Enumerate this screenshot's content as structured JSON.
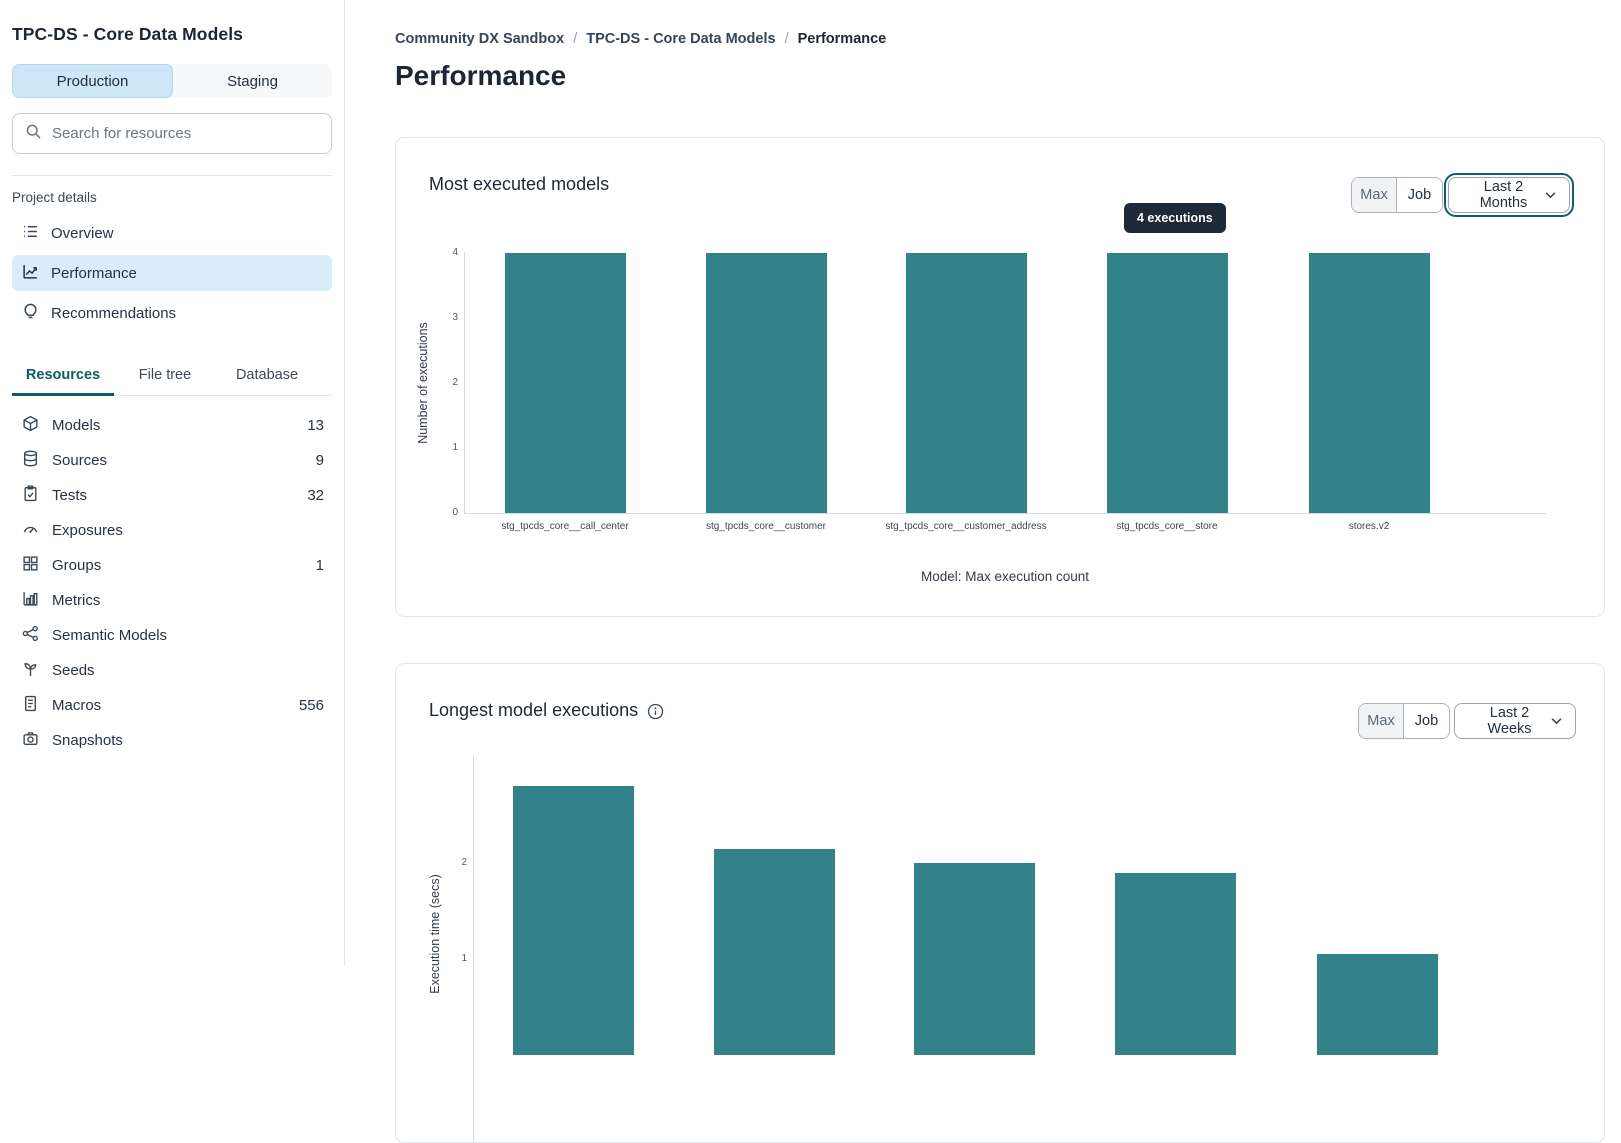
{
  "sidebar": {
    "project_title": "TPC-DS - Core Data Models",
    "environment_toggle": {
      "production": "Production",
      "staging": "Staging",
      "selected": "Production"
    },
    "search": {
      "placeholder": "Search for resources"
    },
    "project_details": {
      "label": "Project details",
      "items": [
        {
          "label": "Overview",
          "icon": "list-icon",
          "selected": false
        },
        {
          "label": "Performance",
          "icon": "trend-chart-icon",
          "selected": true
        },
        {
          "label": "Recommendations",
          "icon": "lightbulb-icon",
          "selected": false
        }
      ]
    },
    "tabs": [
      {
        "label": "Resources",
        "active": true
      },
      {
        "label": "File tree",
        "active": false
      },
      {
        "label": "Database",
        "active": false
      }
    ],
    "resources": [
      {
        "label": "Models",
        "icon": "cube-icon",
        "count": "13"
      },
      {
        "label": "Sources",
        "icon": "database-icon",
        "count": "9"
      },
      {
        "label": "Tests",
        "icon": "clipboard-check-icon",
        "count": "32"
      },
      {
        "label": "Exposures",
        "icon": "gauge-icon",
        "count": ""
      },
      {
        "label": "Groups",
        "icon": "grid-icon",
        "count": "1"
      },
      {
        "label": "Metrics",
        "icon": "bar-chart-icon",
        "count": ""
      },
      {
        "label": "Semantic Models",
        "icon": "network-icon",
        "count": ""
      },
      {
        "label": "Seeds",
        "icon": "sprout-icon",
        "count": ""
      },
      {
        "label": "Macros",
        "icon": "document-icon",
        "count": "556"
      },
      {
        "label": "Snapshots",
        "icon": "camera-icon",
        "count": ""
      }
    ]
  },
  "main": {
    "breadcrumb": {
      "items": [
        "Community DX Sandbox",
        "TPC-DS - Core Data Models",
        "Performance"
      ],
      "separator": "/"
    },
    "page_title": "Performance",
    "cards": [
      {
        "toggle_max": "Max",
        "toggle_job": "Job",
        "time_range": "Last 2 Months",
        "range_focused": true
      },
      {
        "toggle_max": "Max",
        "toggle_job": "Job",
        "time_range": "Last 2 Weeks",
        "range_focused": false
      }
    ]
  },
  "chart_data": [
    {
      "type": "bar",
      "title": "Most executed models",
      "categories": [
        "stg_tpcds_core__call_center",
        "stg_tpcds_core__customer",
        "stg_tpcds_core__customer_address",
        "stg_tpcds_core__store",
        "stores.v2"
      ],
      "values": [
        4,
        4,
        4,
        4,
        4
      ],
      "xlabel": "Model: Max execution count",
      "ylabel": "Number of executions",
      "ylim": [
        0,
        4
      ],
      "yticks": [
        0,
        1,
        2,
        3,
        4
      ],
      "grid": false,
      "bar_color": "#33828a",
      "tooltip": {
        "text": "4 executions",
        "category": "stg_tpcds_core__store"
      }
    },
    {
      "type": "bar",
      "title": "Longest model executions",
      "has_info_icon": true,
      "categories_visible": false,
      "values": [
        2.8,
        2.15,
        2.0,
        1.9,
        1.05
      ],
      "xlabel": "",
      "ylabel": "Execution time (secs)",
      "yticks": [
        1,
        2
      ],
      "grid": false,
      "bar_color": "#33828a",
      "clipped_at_viewport_bottom": true
    }
  ],
  "colors": {
    "bar_teal": "#33828a",
    "accent_teal": "#0b5c63",
    "selected_blue": "#d8ecfa",
    "tooltip_bg": "#1e2937"
  }
}
